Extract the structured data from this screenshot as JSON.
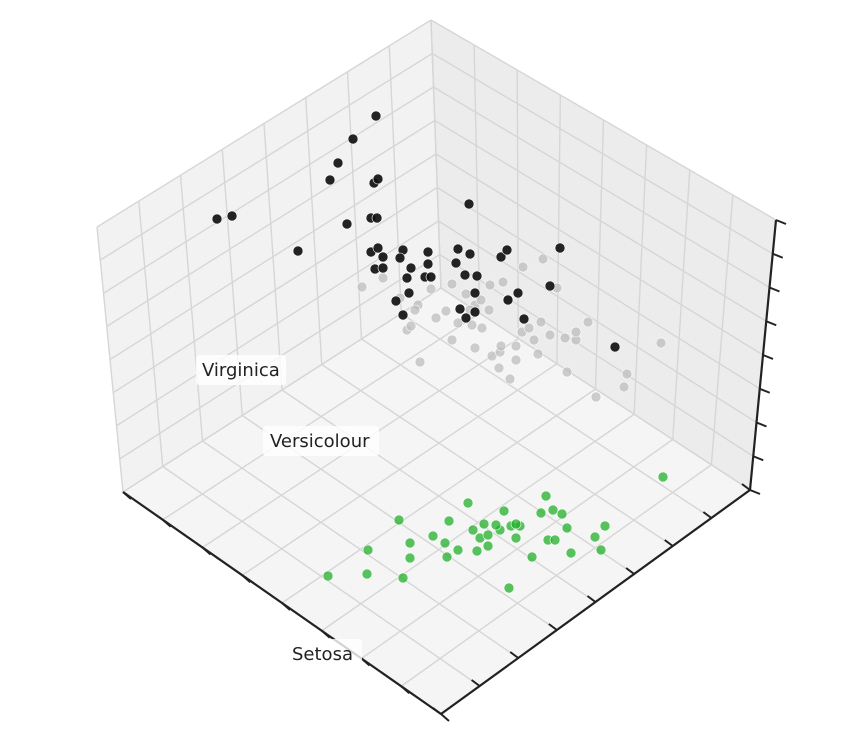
{
  "chart_data": {
    "type": "scatter",
    "projection": "3d",
    "title": "",
    "xlabel": "",
    "ylabel": "",
    "zlabel": "",
    "grid": true,
    "legend": "none",
    "tick_labels": "hidden",
    "annotations": [
      {
        "text": "Virginica"
      },
      {
        "text": "Versicolour"
      },
      {
        "text": "Setosa"
      }
    ],
    "colors": {
      "pane_left": "#f2f2f2",
      "pane_right": "#ececec",
      "pane_floor": "#f5f5f5",
      "grid": "#d6d6d6",
      "axis": "#222222",
      "point_outline": "#ffffff"
    },
    "series": [
      {
        "group": 0,
        "color": "#22b02a",
        "points": [
          [
            328,
            576
          ],
          [
            367,
            574
          ],
          [
            403,
            578
          ],
          [
            368,
            550
          ],
          [
            410,
            543
          ],
          [
            399,
            520
          ],
          [
            433,
            536
          ],
          [
            445,
            543
          ],
          [
            447,
            557
          ],
          [
            458,
            550
          ],
          [
            477,
            551
          ],
          [
            488,
            546
          ],
          [
            480,
            538
          ],
          [
            488,
            535
          ],
          [
            500,
            530
          ],
          [
            511,
            526
          ],
          [
            520,
            526
          ],
          [
            532,
            557
          ],
          [
            548,
            540
          ],
          [
            571,
            553
          ],
          [
            509,
            588
          ],
          [
            468,
            503
          ],
          [
            504,
            511
          ],
          [
            546,
            496
          ],
          [
            541,
            513
          ],
          [
            553,
            510
          ],
          [
            562,
            514
          ],
          [
            567,
            528
          ],
          [
            595,
            537
          ],
          [
            605,
            526
          ],
          [
            601,
            550
          ],
          [
            555,
            540
          ],
          [
            516,
            538
          ],
          [
            496,
            525
          ],
          [
            473,
            530
          ],
          [
            449,
            521
          ],
          [
            410,
            558
          ],
          [
            663,
            477
          ],
          [
            484,
            524
          ],
          [
            516,
            524
          ]
        ]
      },
      {
        "group": 1,
        "color": "#bdbdbd",
        "points": [
          [
            362,
            287
          ],
          [
            383,
            278
          ],
          [
            400,
            298
          ],
          [
            418,
            305
          ],
          [
            431,
            289
          ],
          [
            452,
            284
          ],
          [
            466,
            294
          ],
          [
            475,
            305
          ],
          [
            481,
            300
          ],
          [
            490,
            285
          ],
          [
            503,
            282
          ],
          [
            508,
            299
          ],
          [
            523,
            267
          ],
          [
            543,
            259
          ],
          [
            557,
            288
          ],
          [
            446,
            311
          ],
          [
            458,
            323
          ],
          [
            472,
            325
          ],
          [
            482,
            328
          ],
          [
            407,
            330
          ],
          [
            411,
            326
          ],
          [
            420,
            362
          ],
          [
            452,
            340
          ],
          [
            475,
            348
          ],
          [
            492,
            356
          ],
          [
            500,
            352
          ],
          [
            499,
            368
          ],
          [
            510,
            379
          ],
          [
            516,
            360
          ],
          [
            516,
            346
          ],
          [
            522,
            332
          ],
          [
            529,
            328
          ],
          [
            534,
            340
          ],
          [
            538,
            354
          ],
          [
            550,
            335
          ],
          [
            565,
            338
          ],
          [
            576,
            340
          ],
          [
            576,
            332
          ],
          [
            588,
            322
          ],
          [
            567,
            372
          ],
          [
            596,
            397
          ],
          [
            624,
            387
          ],
          [
            627,
            374
          ],
          [
            661,
            343
          ],
          [
            415,
            310
          ],
          [
            436,
            318
          ],
          [
            470,
            310
          ],
          [
            501,
            346
          ],
          [
            489,
            310
          ],
          [
            541,
            322
          ]
        ]
      },
      {
        "group": 2,
        "color": "#111111",
        "points": [
          [
            217,
            219
          ],
          [
            232,
            216
          ],
          [
            298,
            251
          ],
          [
            330,
            180
          ],
          [
            338,
            163
          ],
          [
            353,
            139
          ],
          [
            376,
            116
          ],
          [
            374,
            183
          ],
          [
            378,
            179
          ],
          [
            371,
            218
          ],
          [
            377,
            218
          ],
          [
            347,
            224
          ],
          [
            371,
            252
          ],
          [
            383,
            257
          ],
          [
            378,
            248
          ],
          [
            403,
            250
          ],
          [
            400,
            258
          ],
          [
            375,
            269
          ],
          [
            383,
            268
          ],
          [
            411,
            268
          ],
          [
            407,
            278
          ],
          [
            425,
            277
          ],
          [
            428,
            264
          ],
          [
            428,
            252
          ],
          [
            458,
            249
          ],
          [
            470,
            254
          ],
          [
            456,
            263
          ],
          [
            465,
            275
          ],
          [
            477,
            276
          ],
          [
            469,
            204
          ],
          [
            501,
            257
          ],
          [
            507,
            250
          ],
          [
            475,
            293
          ],
          [
            460,
            309
          ],
          [
            475,
            312
          ],
          [
            466,
            318
          ],
          [
            409,
            293
          ],
          [
            396,
            301
          ],
          [
            403,
            315
          ],
          [
            508,
            300
          ],
          [
            518,
            293
          ],
          [
            524,
            319
          ],
          [
            550,
            286
          ],
          [
            560,
            248
          ],
          [
            615,
            347
          ],
          [
            431,
            277
          ]
        ]
      }
    ]
  }
}
